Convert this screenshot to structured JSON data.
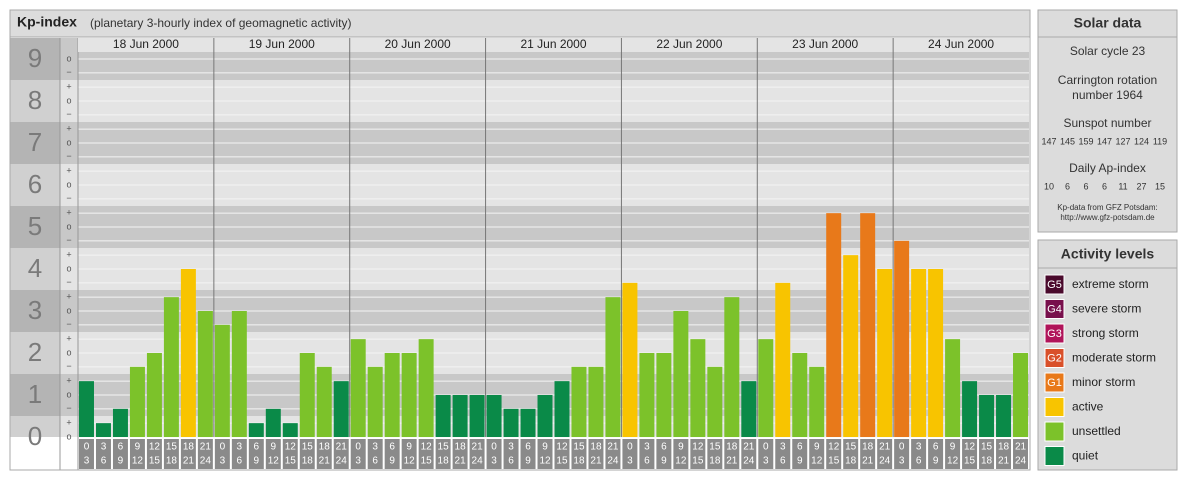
{
  "chart_data": {
    "type": "bar",
    "title": "Kp-index",
    "subtitle": "(planetary 3-hourly index of geomagnetic activity)",
    "groups": [
      "18 Jun 2000",
      "19 Jun 2000",
      "20 Jun 2000",
      "21 Jun 2000",
      "22 Jun 2000",
      "23 Jun 2000",
      "24 Jun 2000"
    ],
    "hours": [
      "0",
      "3",
      "6",
      "9",
      "12",
      "15",
      "18",
      "21",
      "24"
    ],
    "values": [
      [
        1.33,
        0.33,
        0.67,
        1.67,
        2,
        3.33,
        4,
        3
      ],
      [
        2.67,
        3,
        0.33,
        0.67,
        0.33,
        2,
        1.67,
        1.33
      ],
      [
        2.33,
        1.67,
        2,
        2,
        2.33,
        1,
        1,
        1
      ],
      [
        1,
        0.67,
        0.67,
        1,
        1.33,
        1.67,
        1.67,
        3.33
      ],
      [
        3.67,
        2,
        2,
        3,
        2.33,
        1.67,
        3.33,
        1.33
      ],
      [
        2.33,
        3.67,
        2,
        1.67,
        5.33,
        4.33,
        5.33,
        4
      ],
      [
        4.67,
        4,
        4,
        2.33,
        1.33,
        1,
        1,
        2
      ]
    ],
    "colors": [
      [
        "#0a8a48",
        "#0a8a48",
        "#0a8a48",
        "#7cc22a",
        "#7cc22a",
        "#7cc22a",
        "#f8c400",
        "#7cc22a"
      ],
      [
        "#7cc22a",
        "#7cc22a",
        "#0a8a48",
        "#0a8a48",
        "#0a8a48",
        "#7cc22a",
        "#7cc22a",
        "#0a8a48"
      ],
      [
        "#7cc22a",
        "#7cc22a",
        "#7cc22a",
        "#7cc22a",
        "#7cc22a",
        "#0a8a48",
        "#0a8a48",
        "#0a8a48"
      ],
      [
        "#0a8a48",
        "#0a8a48",
        "#0a8a48",
        "#0a8a48",
        "#0a8a48",
        "#7cc22a",
        "#7cc22a",
        "#7cc22a"
      ],
      [
        "#f8c400",
        "#7cc22a",
        "#7cc22a",
        "#7cc22a",
        "#7cc22a",
        "#7cc22a",
        "#7cc22a",
        "#0a8a48"
      ],
      [
        "#7cc22a",
        "#f8c400",
        "#7cc22a",
        "#7cc22a",
        "#e8791a",
        "#f8c400",
        "#e8791a",
        "#f8c400"
      ],
      [
        "#e8791a",
        "#f8c400",
        "#f8c400",
        "#7cc22a",
        "#0a8a48",
        "#0a8a48",
        "#0a8a48",
        "#7cc22a"
      ]
    ],
    "ylim": [
      0,
      9.5
    ],
    "yticks": [
      0,
      1,
      2,
      3,
      4,
      5,
      6,
      7,
      8,
      9
    ],
    "minor_ticks": [
      {
        "value": 0,
        "label": "o"
      },
      {
        "value": 0.33,
        "label": "+"
      },
      {
        "value": 0.67,
        "label": "−"
      },
      {
        "value": 1,
        "label": "o"
      },
      {
        "value": 1.33,
        "label": "+"
      },
      {
        "value": 1.67,
        "label": "−"
      },
      {
        "value": 2,
        "label": "o"
      },
      {
        "value": 2.33,
        "label": "+"
      },
      {
        "value": 2.67,
        "label": "−"
      },
      {
        "value": 3,
        "label": "o"
      },
      {
        "value": 3.33,
        "label": "+"
      },
      {
        "value": 3.67,
        "label": "−"
      },
      {
        "value": 4,
        "label": "o"
      },
      {
        "value": 4.33,
        "label": "+"
      },
      {
        "value": 4.67,
        "label": "−"
      },
      {
        "value": 5,
        "label": "o"
      },
      {
        "value": 5.33,
        "label": "+"
      },
      {
        "value": 5.67,
        "label": "−"
      },
      {
        "value": 6,
        "label": "o"
      },
      {
        "value": 6.33,
        "label": "+"
      },
      {
        "value": 6.67,
        "label": "−"
      },
      {
        "value": 7,
        "label": "o"
      },
      {
        "value": 7.33,
        "label": "+"
      },
      {
        "value": 7.67,
        "label": "−"
      },
      {
        "value": 8,
        "label": "o"
      },
      {
        "value": 8.33,
        "label": "+"
      },
      {
        "value": 8.67,
        "label": "−"
      },
      {
        "value": 9,
        "label": "o"
      }
    ],
    "grid": true,
    "solar": {
      "title": "Solar data",
      "cycle": "Solar cycle 23",
      "carrington": [
        "Carrington rotation",
        "number 1964"
      ],
      "sunspot_title": "Sunspot number",
      "sunspot": [
        147,
        145,
        159,
        147,
        127,
        124,
        119
      ],
      "ap_title": "Daily Ap-index",
      "ap": [
        10,
        6,
        6,
        6,
        11,
        27,
        15
      ],
      "source": [
        "Kp-data from GFZ Potsdam:",
        "http://www.gfz-potsdam.de"
      ]
    },
    "legend": {
      "title": "Activity levels",
      "levels": [
        {
          "code": "G5",
          "name": "extreme storm",
          "color": "#4a0a2c"
        },
        {
          "code": "G4",
          "name": "severe storm",
          "color": "#780f4c"
        },
        {
          "code": "G3",
          "name": "strong storm",
          "color": "#b0145a"
        },
        {
          "code": "G2",
          "name": "moderate storm",
          "color": "#d9502a"
        },
        {
          "code": "G1",
          "name": "minor storm",
          "color": "#e8791a"
        },
        {
          "code": "",
          "name": "active",
          "color": "#f8c400"
        },
        {
          "code": "",
          "name": "unsettled",
          "color": "#7cc22a"
        },
        {
          "code": "",
          "name": "quiet",
          "color": "#0a8a48"
        }
      ]
    }
  }
}
